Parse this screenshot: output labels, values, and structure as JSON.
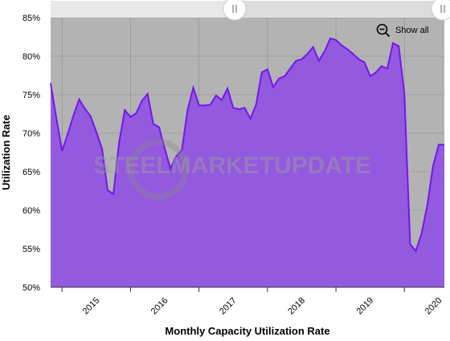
{
  "chart_data": {
    "type": "area",
    "title": "",
    "xlabel": "Monthly Capacity Utilization Rate",
    "ylabel": "Utilization Rate",
    "ylim": [
      50,
      85
    ],
    "yticks": [
      "50%",
      "55%",
      "60%",
      "65%",
      "70%",
      "75%",
      "80%",
      "85%"
    ],
    "xticks": [
      "2015",
      "2016",
      "2017",
      "2018",
      "2019",
      "2020"
    ],
    "x_range": [
      "2014-11",
      "2020-08"
    ],
    "x": [
      "2014-11",
      "2014-12",
      "2015-01",
      "2015-02",
      "2015-03",
      "2015-04",
      "2015-05",
      "2015-06",
      "2015-07",
      "2015-08",
      "2015-09",
      "2015-10",
      "2015-11",
      "2015-12",
      "2016-01",
      "2016-02",
      "2016-03",
      "2016-04",
      "2016-05",
      "2016-06",
      "2016-07",
      "2016-08",
      "2016-09",
      "2016-10",
      "2016-11",
      "2016-12",
      "2017-01",
      "2017-02",
      "2017-03",
      "2017-04",
      "2017-05",
      "2017-06",
      "2017-07",
      "2017-08",
      "2017-09",
      "2017-10",
      "2017-11",
      "2017-12",
      "2018-01",
      "2018-02",
      "2018-03",
      "2018-04",
      "2018-05",
      "2018-06",
      "2018-07",
      "2018-08",
      "2018-09",
      "2018-10",
      "2018-11",
      "2018-12",
      "2019-01",
      "2019-02",
      "2019-03",
      "2019-04",
      "2019-05",
      "2019-06",
      "2019-07",
      "2019-08",
      "2019-09",
      "2019-10",
      "2019-11",
      "2019-12",
      "2020-01",
      "2020-02",
      "2020-03",
      "2020-04",
      "2020-05",
      "2020-06",
      "2020-07",
      "2020-08"
    ],
    "series": [
      {
        "values": [
          76.5,
          72.0,
          67.7,
          69.9,
          72.3,
          74.4,
          73.2,
          72.2,
          70.2,
          68.0,
          62.6,
          62.1,
          68.8,
          73.0,
          72.1,
          72.6,
          74.2,
          75.1,
          71.2,
          70.8,
          68.0,
          65.4,
          67.0,
          67.8,
          73.0,
          75.9,
          73.6,
          73.6,
          73.7,
          74.9,
          74.3,
          75.8,
          73.3,
          73.1,
          73.3,
          71.9,
          73.7,
          77.9,
          78.3,
          76.0,
          77.1,
          77.4,
          78.4,
          79.4,
          79.6,
          80.3,
          81.2,
          79.4,
          80.6,
          82.3,
          82.1,
          81.4,
          80.9,
          80.3,
          79.6,
          79.2,
          77.4,
          77.9,
          78.7,
          78.4,
          81.7,
          81.3,
          75.0,
          55.6,
          54.7,
          57.0,
          60.6,
          65.7,
          68.5,
          68.5
        ],
        "color": "#9359de",
        "line_color": "#7416f0"
      }
    ],
    "plot_background": "#b3b3b3",
    "grid": true,
    "watermark": "STEELMARKETUPDATE"
  },
  "ui": {
    "show_all_label": "Show all",
    "show_all_icon": "zoom-out-icon",
    "navigator_handle_icon": "drag-handle-icon"
  }
}
